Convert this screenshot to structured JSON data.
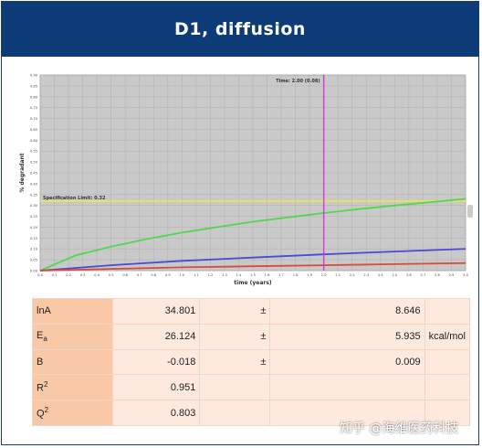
{
  "header": {
    "title": "D1, diffusion"
  },
  "chart_data": {
    "type": "line",
    "title": "",
    "xlabel": "time (years)",
    "ylabel": "% degradant",
    "xlim": [
      0,
      3.0
    ],
    "ylim": [
      0,
      0.9
    ],
    "x_ticks": [
      "0.0",
      "0.1",
      "0.2",
      "0.3",
      "0.4",
      "0.5",
      "0.6",
      "0.7",
      "0.8",
      "0.9",
      "1.0",
      "1.1",
      "1.2",
      "1.3",
      "1.4",
      "1.5",
      "1.6",
      "1.7",
      "1.8",
      "1.9",
      "2.0",
      "2.1",
      "2.2",
      "2.3",
      "2.4",
      "2.5",
      "2.6",
      "2.7",
      "2.8",
      "2.9",
      "3.0"
    ],
    "y_ticks": [
      "0.00",
      "0.05",
      "0.10",
      "0.15",
      "0.20",
      "0.25",
      "0.30",
      "0.35",
      "0.40",
      "0.45",
      "0.50",
      "0.55",
      "0.60",
      "0.65",
      "0.70",
      "0.75",
      "0.80",
      "0.85",
      "0.90"
    ],
    "spec_limit": {
      "value": 0.32,
      "label": "Specification Limit: 0.32",
      "color": "#e8e84a"
    },
    "time_marker": {
      "x": 2.0,
      "label": "Time: 2.00 (0.08)",
      "color": "#d63ad6"
    },
    "series": [
      {
        "color": "#4fd84f",
        "x": [
          0,
          0.25,
          0.5,
          0.75,
          1.0,
          1.25,
          1.5,
          1.75,
          2.0,
          2.25,
          2.5,
          2.75,
          3.0
        ],
        "y": [
          0,
          0.07,
          0.11,
          0.145,
          0.175,
          0.2,
          0.225,
          0.245,
          0.265,
          0.283,
          0.3,
          0.315,
          0.33
        ]
      },
      {
        "color": "#4a4ad8",
        "x": [
          0,
          0.5,
          1.0,
          1.5,
          2.0,
          2.5,
          3.0
        ],
        "y": [
          0,
          0.025,
          0.045,
          0.06,
          0.075,
          0.088,
          0.1
        ]
      },
      {
        "color": "#d84a3a",
        "x": [
          0,
          0.5,
          1.0,
          1.5,
          2.0,
          2.5,
          3.0
        ],
        "y": [
          0,
          0.008,
          0.015,
          0.02,
          0.025,
          0.03,
          0.035
        ]
      }
    ],
    "grid": true
  },
  "table": {
    "rows": [
      {
        "name_main": "lnA",
        "name_mark": "",
        "mark_type": "",
        "value": "34.801",
        "pm": "±",
        "err": "8.646",
        "unit": ""
      },
      {
        "name_main": "E",
        "name_mark": "a",
        "mark_type": "sub",
        "value": "26.124",
        "pm": "±",
        "err": "5.935",
        "unit": "kcal/mol"
      },
      {
        "name_main": "B",
        "name_mark": "",
        "mark_type": "",
        "value": "-0.018",
        "pm": "±",
        "err": "0.009",
        "unit": ""
      },
      {
        "name_main": "R",
        "name_mark": "2",
        "mark_type": "sup",
        "value": "0.951",
        "pm": "",
        "err": "",
        "unit": ""
      },
      {
        "name_main": "Q",
        "name_mark": "2",
        "mark_type": "sup",
        "value": "0.803",
        "pm": "",
        "err": "",
        "unit": ""
      }
    ]
  },
  "watermark": {
    "text": "知乎 @海维医药科技"
  }
}
